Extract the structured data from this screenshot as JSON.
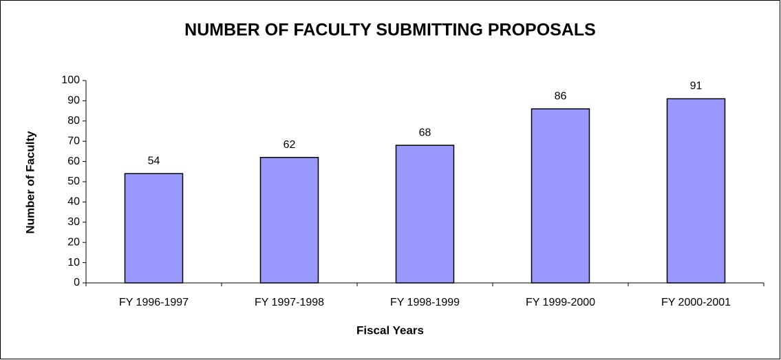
{
  "chart_data": {
    "type": "bar",
    "title": "NUMBER OF FACULTY SUBMITTING PROPOSALS",
    "x_label": "Fiscal Years",
    "y_label": "Number of Faculty",
    "categories": [
      "FY 1996-1997",
      "FY 1997-1998",
      "FY 1998-1999",
      "FY 1999-2000",
      "FY 2000-2001"
    ],
    "values": [
      54,
      62,
      68,
      86,
      91
    ],
    "color": "#9999ff",
    "ylim": [
      0,
      100
    ],
    "yticks": [
      0,
      10,
      20,
      30,
      40,
      50,
      60,
      70,
      80,
      90,
      100
    ],
    "grid": false
  }
}
